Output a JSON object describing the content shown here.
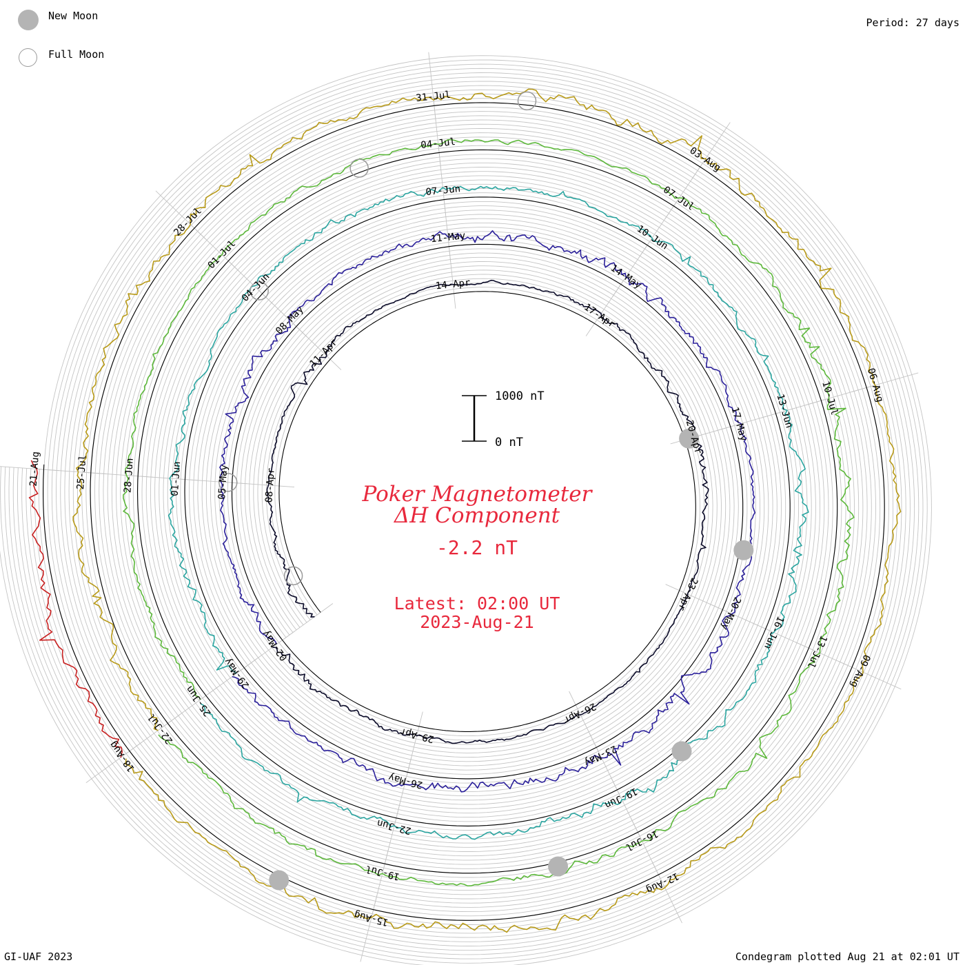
{
  "legend": {
    "new_moon_label": "New Moon",
    "full_moon_label": "Full Moon"
  },
  "period_label": "Period: 27 days",
  "footer_left": "GI-UAF 2023",
  "footer_right": "Condegram plotted Aug 21 at 02:01 UT",
  "colors": {
    "title": "#e8283c",
    "grid": "#c4c4c4",
    "moon_fill": "#b4b4b4",
    "moon_outline": "#9a9a9a"
  },
  "chart_data": {
    "type": "line",
    "title": "Poker Magnetometer",
    "subtitle": "ΔH Component",
    "current_value": "-2.2 nT",
    "latest_time": "Latest: 02:00 UT",
    "latest_date": "2023-Aug-21",
    "scale_bar": {
      "top_label": "1000 nT",
      "bottom_label": "0 nT",
      "span_nT": 1000
    },
    "period_days": 27,
    "start_date": "2023-04-05",
    "end_date": "2023-08-21",
    "rotation_start_dates": [
      "05-Apr",
      "02-May",
      "29-May",
      "25-Jun",
      "22-Jul",
      "18-Aug"
    ],
    "series": [
      {
        "start": "05-Apr",
        "color": "#0a0a28",
        "activity": [
          0.32,
          0.28,
          0.15,
          0.1,
          0.12,
          0.45,
          0.2,
          0.1,
          0.08,
          0.12,
          0.1,
          0.15,
          0.22,
          0.3,
          0.25,
          0.45,
          0.2,
          0.15,
          0.1,
          0.12,
          0.08,
          0.1,
          0.12,
          0.15,
          0.2,
          0.3,
          0.4
        ]
      },
      {
        "start": "02-May",
        "color": "#2a1f9a",
        "activity": [
          0.35,
          0.2,
          0.18,
          0.3,
          0.5,
          0.4,
          0.3,
          0.25,
          0.35,
          0.45,
          0.4,
          0.55,
          0.5,
          0.35,
          0.3,
          0.25,
          0.2,
          0.3,
          0.45,
          0.55,
          0.5,
          0.45,
          0.5,
          0.55,
          0.4,
          0.3,
          0.35
        ]
      },
      {
        "start": "29-May",
        "color": "#2aa5a0",
        "activity": [
          0.3,
          0.35,
          0.4,
          0.3,
          0.25,
          0.2,
          0.3,
          0.35,
          0.3,
          0.25,
          0.2,
          0.2,
          0.25,
          0.3,
          0.25,
          0.45,
          0.55,
          0.5,
          0.4,
          0.45,
          0.5,
          0.4,
          0.35,
          0.3,
          0.35,
          0.3,
          0.3
        ]
      },
      {
        "start": "25-Jun",
        "color": "#5cb83a",
        "activity": [
          0.35,
          0.3,
          0.25,
          0.2,
          0.18,
          0.15,
          0.2,
          0.25,
          0.2,
          0.2,
          0.15,
          0.18,
          0.25,
          0.35,
          0.45,
          0.5,
          0.55,
          0.45,
          0.4,
          0.35,
          0.3,
          0.35,
          0.3,
          0.25,
          0.3,
          0.35,
          0.3
        ]
      },
      {
        "start": "22-Jul",
        "color": "#b89a18",
        "activity": [
          0.45,
          0.5,
          0.4,
          0.35,
          0.45,
          0.5,
          0.4,
          0.35,
          0.3,
          0.4,
          0.55,
          0.6,
          0.5,
          0.45,
          0.35,
          0.3,
          0.35,
          0.3,
          0.25,
          0.3,
          0.4,
          0.45,
          0.5,
          0.45,
          0.4,
          0.35,
          0.4
        ]
      },
      {
        "start": "18-Aug",
        "color": "#c82020",
        "activity": [
          0.5,
          0.45,
          0.4,
          0.35
        ]
      }
    ],
    "new_moon_dates": [
      "20-Apr",
      "19-May",
      "18-Jun",
      "17-Jul",
      "16-Aug"
    ],
    "full_moon_dates": [
      "06-Apr",
      "05-May",
      "04-Jun",
      "03-Jul",
      "01-Aug"
    ],
    "grid": true
  }
}
